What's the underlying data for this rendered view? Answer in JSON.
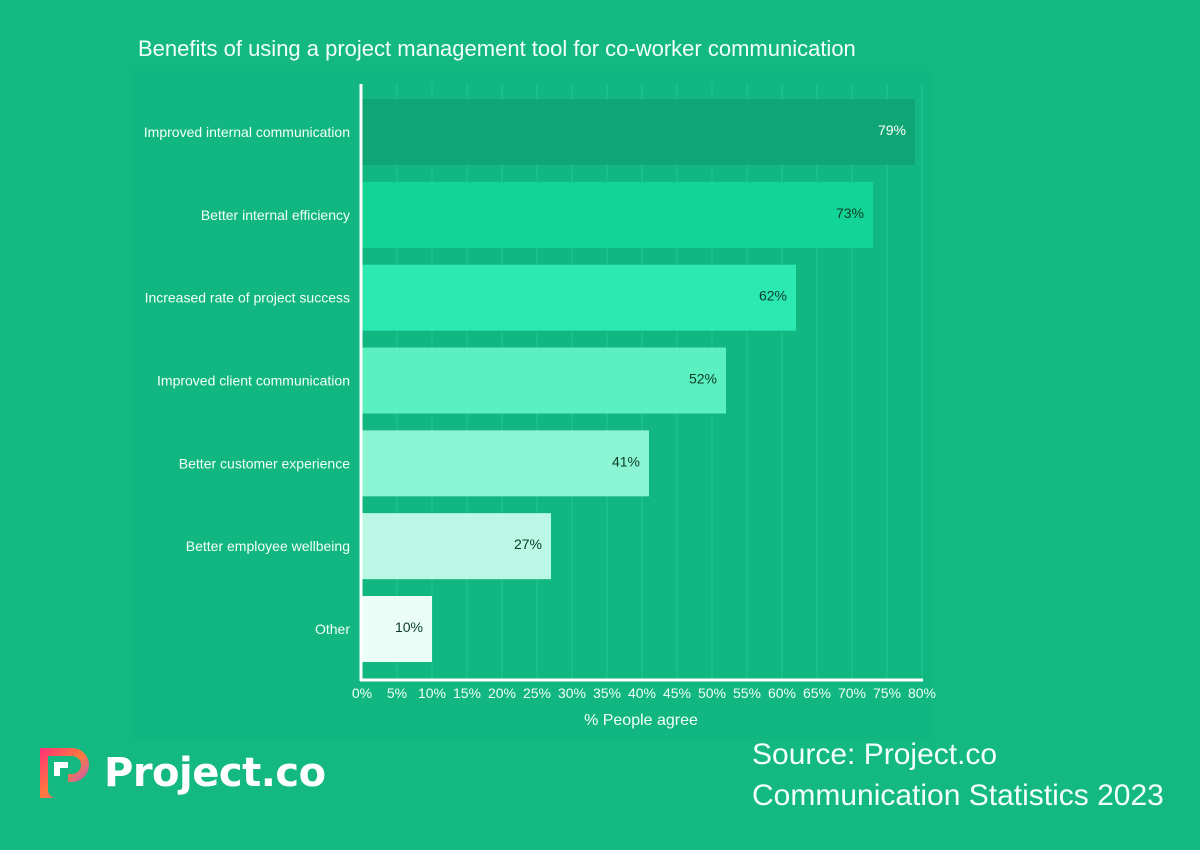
{
  "chart_data": {
    "type": "bar",
    "orientation": "horizontal",
    "title": "Benefits of using a project management tool for co-worker communication",
    "xlabel": "% People agree",
    "ylabel": "",
    "xlim": [
      0,
      80
    ],
    "grid": true,
    "categories": [
      "Improved internal communication",
      "Better internal efficiency",
      "Increased rate of project success",
      "Improved client communication",
      "Better customer experience",
      "Better employee wellbeing",
      "Other"
    ],
    "values": [
      79,
      73,
      62,
      52,
      41,
      27,
      10
    ],
    "data_labels": [
      "79%",
      "73%",
      "62%",
      "52%",
      "41%",
      "27%",
      "10%"
    ],
    "bar_colors": [
      "#0fa574",
      "#12d495",
      "#2be9b0",
      "#5bf0c0",
      "#8bf4d3",
      "#baf8e5",
      "#eafdf6"
    ],
    "label_colors": [
      "#ffffff",
      "#0b3b2b",
      "#0b3b2b",
      "#0b3b2b",
      "#0b3b2b",
      "#0b3b2b",
      "#0b3b2b"
    ],
    "x_ticks": [
      "0%",
      "5%",
      "10%",
      "15%",
      "20%",
      "25%",
      "30%",
      "35%",
      "40%",
      "45%",
      "50%",
      "55%",
      "60%",
      "65%",
      "70%",
      "75%",
      "80%"
    ]
  },
  "source": {
    "line1": "Source: Project.co",
    "line2": "Communication Statistics 2023"
  },
  "brand": {
    "name": "Project.co"
  },
  "colors": {
    "background": "#13b981"
  }
}
